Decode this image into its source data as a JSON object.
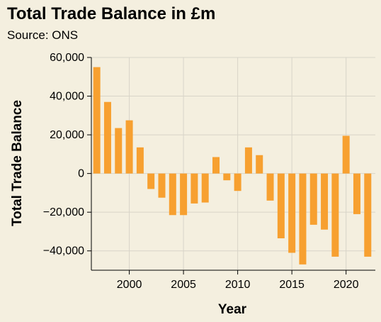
{
  "title": "Total Trade Balance in £m",
  "subtitle": "Source: ONS",
  "colors": {
    "background": "#f4efdf",
    "bar": "#f7a030",
    "grid": "#d8d4c8",
    "axis": "#000000"
  },
  "chart_data": {
    "type": "bar",
    "title": "Total Trade Balance in £m",
    "subtitle": "Source: ONS",
    "xlabel": "Year",
    "ylabel": "Total Trade Balance",
    "xlim": [
      1996.5,
      2022.7
    ],
    "ylim": [
      -50000,
      60000
    ],
    "grid": true,
    "x_ticks": [
      2000,
      2005,
      2010,
      2015,
      2020
    ],
    "x_tick_labels": [
      "2000",
      "2005",
      "2010",
      "2015",
      "2020"
    ],
    "y_ticks": [
      -40000,
      -20000,
      0,
      20000,
      40000,
      60000
    ],
    "y_tick_labels": [
      "−40,000",
      "−20,000",
      "0",
      "20,000",
      "40,000",
      "60,000"
    ],
    "x": [
      1997,
      1998,
      1999,
      2000,
      2001,
      2002,
      2003,
      2004,
      2005,
      2006,
      2007,
      2008,
      2009,
      2010,
      2011,
      2012,
      2013,
      2014,
      2015,
      2016,
      2017,
      2018,
      2019,
      2020,
      2021,
      2022
    ],
    "values": [
      55000,
      37000,
      23500,
      27500,
      13500,
      -8000,
      -12500,
      -21500,
      -21500,
      -15500,
      -15000,
      8500,
      -3500,
      -9000,
      13500,
      9500,
      -14000,
      -33500,
      -41000,
      -47000,
      -26500,
      -29000,
      -43000,
      19500,
      -21000,
      -43000
    ]
  }
}
